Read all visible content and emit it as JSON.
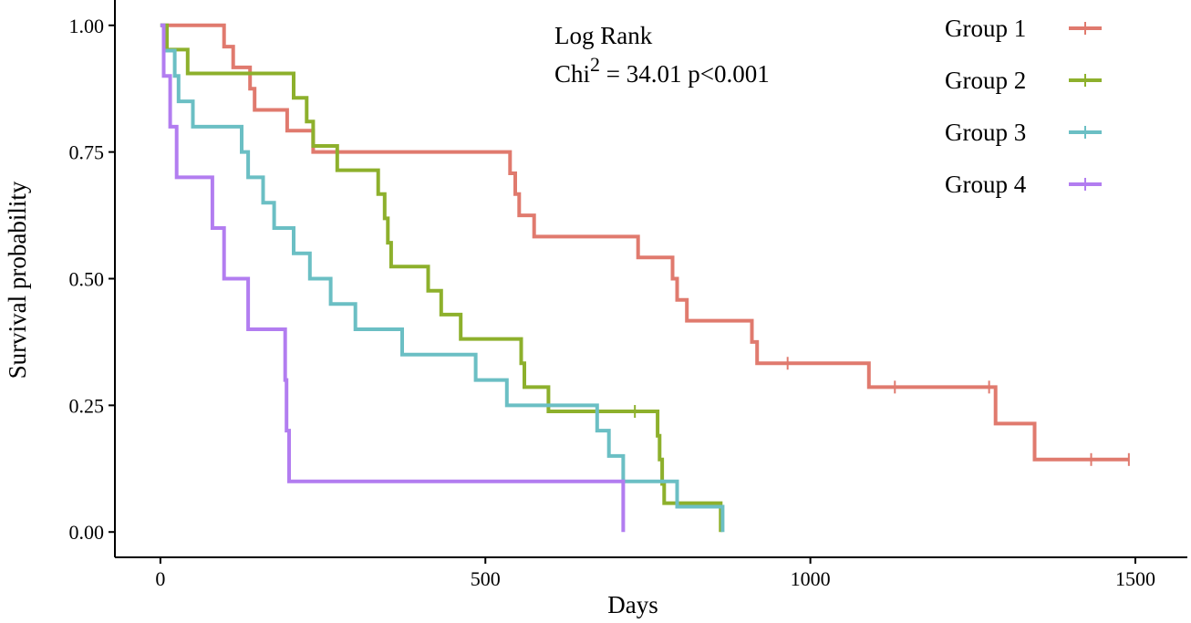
{
  "chart_data": {
    "type": "line",
    "subtype": "kaplan-meier-step",
    "xlabel": "Days",
    "ylabel": "Survival probability",
    "xlim": [
      -70,
      1580
    ],
    "ylim": [
      -0.05,
      1.05
    ],
    "x_ticks": [
      0,
      500,
      1000,
      1500
    ],
    "x_tick_labels": [
      "0",
      "500",
      "1000",
      "1500"
    ],
    "y_ticks": [
      0,
      0.25,
      0.5,
      0.75,
      1.0
    ],
    "y_tick_labels": [
      "0.00",
      "0.25",
      "0.50",
      "0.75",
      "1.00"
    ],
    "grid": false,
    "legend_position": "top-right",
    "annotation": {
      "line1": "Log Rank",
      "line2_prefix": "Chi",
      "line2_sup": "2",
      "line2_suffix": " = 34.01 p<0.001"
    },
    "series": [
      {
        "name": "Group 1",
        "color": "#E07A6E",
        "steps": [
          [
            0,
            1.0
          ],
          [
            98,
            0.958
          ],
          [
            112,
            0.917
          ],
          [
            138,
            0.875
          ],
          [
            145,
            0.833
          ],
          [
            195,
            0.792
          ],
          [
            235,
            0.75
          ],
          [
            538,
            0.708
          ],
          [
            546,
            0.667
          ],
          [
            552,
            0.625
          ],
          [
            575,
            0.583
          ],
          [
            735,
            0.542
          ],
          [
            788,
            0.5
          ],
          [
            795,
            0.458
          ],
          [
            810,
            0.417
          ],
          [
            910,
            0.375
          ],
          [
            918,
            0.333
          ],
          [
            1090,
            0.286
          ],
          [
            1285,
            0.214
          ],
          [
            1345,
            0.143
          ],
          [
            1490,
            0.143
          ]
        ],
        "censored": [
          [
            965,
            0.333
          ],
          [
            1130,
            0.286
          ],
          [
            1275,
            0.286
          ],
          [
            1432,
            0.143
          ],
          [
            1490,
            0.143
          ]
        ]
      },
      {
        "name": "Group 2",
        "color": "#8DB02C",
        "steps": [
          [
            0,
            1.0
          ],
          [
            10,
            0.952
          ],
          [
            42,
            0.905
          ],
          [
            205,
            0.857
          ],
          [
            225,
            0.81
          ],
          [
            235,
            0.762
          ],
          [
            272,
            0.714
          ],
          [
            335,
            0.667
          ],
          [
            345,
            0.619
          ],
          [
            350,
            0.571
          ],
          [
            355,
            0.524
          ],
          [
            412,
            0.476
          ],
          [
            432,
            0.429
          ],
          [
            462,
            0.381
          ],
          [
            555,
            0.333
          ],
          [
            560,
            0.286
          ],
          [
            597,
            0.238
          ],
          [
            765,
            0.19
          ],
          [
            768,
            0.143
          ],
          [
            772,
            0.095
          ],
          [
            775,
            0.057
          ],
          [
            862,
            0.0
          ]
        ],
        "censored": [
          [
            730,
            0.238
          ]
        ]
      },
      {
        "name": "Group 3",
        "color": "#6BBFC4",
        "steps": [
          [
            0,
            1.0
          ],
          [
            5,
            0.95
          ],
          [
            22,
            0.9
          ],
          [
            28,
            0.85
          ],
          [
            50,
            0.8
          ],
          [
            125,
            0.75
          ],
          [
            135,
            0.7
          ],
          [
            158,
            0.65
          ],
          [
            175,
            0.6
          ],
          [
            205,
            0.55
          ],
          [
            230,
            0.5
          ],
          [
            262,
            0.45
          ],
          [
            300,
            0.4
          ],
          [
            372,
            0.35
          ],
          [
            485,
            0.3
          ],
          [
            533,
            0.25
          ],
          [
            672,
            0.2
          ],
          [
            690,
            0.15
          ],
          [
            712,
            0.1
          ],
          [
            795,
            0.05
          ],
          [
            865,
            0.0
          ]
        ],
        "censored": []
      },
      {
        "name": "Group 4",
        "color": "#B27DF0",
        "steps": [
          [
            0,
            1.0
          ],
          [
            5,
            0.9
          ],
          [
            15,
            0.8
          ],
          [
            25,
            0.7
          ],
          [
            80,
            0.6
          ],
          [
            98,
            0.5
          ],
          [
            135,
            0.4
          ],
          [
            192,
            0.3
          ],
          [
            194,
            0.2
          ],
          [
            198,
            0.1
          ],
          [
            712,
            0.0
          ]
        ],
        "censored": []
      }
    ]
  }
}
